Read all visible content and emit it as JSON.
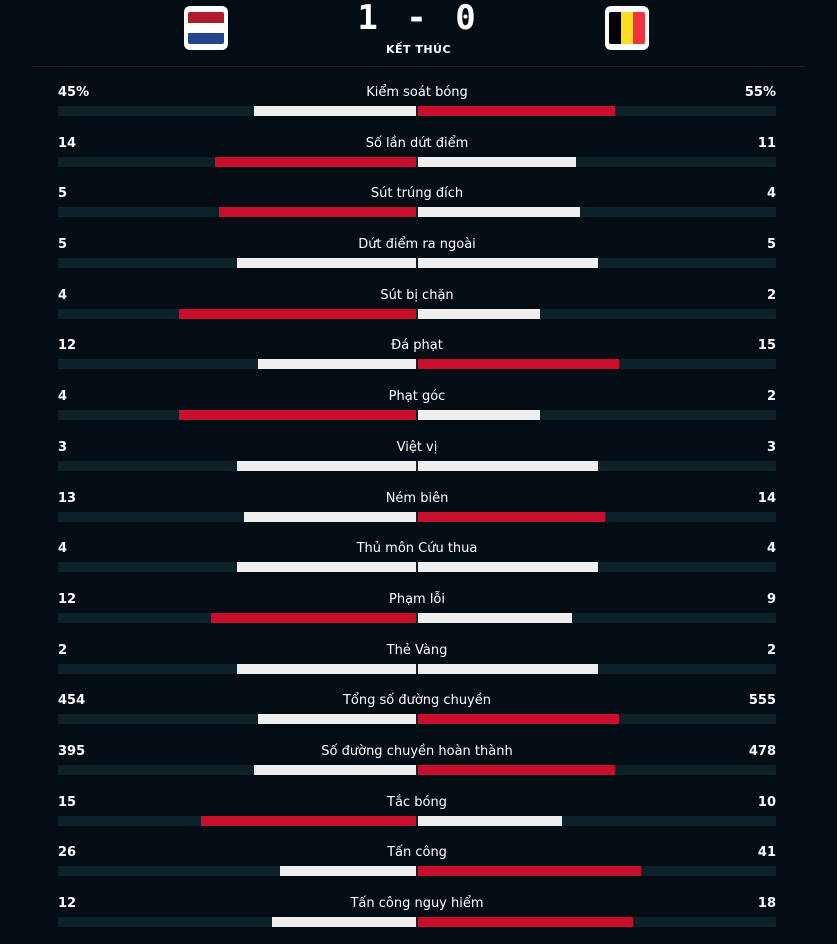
{
  "match": {
    "home_flag_icon": "netherlands-flag-icon",
    "away_flag_icon": "belgium-flag-icon",
    "score": "1 - 0",
    "status": "KẾT THÚC"
  },
  "colors": {
    "winner": "#c8102e",
    "loser": "#eeeeee",
    "track": "#0d2129",
    "background": "#050d14"
  },
  "stats": [
    {
      "label": "Kiểm soát bóng",
      "home": "45%",
      "away": "55%",
      "home_share": 0.45,
      "away_share": 0.55
    },
    {
      "label": "Số lần dứt điểm",
      "home": "14",
      "away": "11",
      "home_share": 0.56,
      "away_share": 0.44
    },
    {
      "label": "Sút trúng đích",
      "home": "5",
      "away": "4",
      "home_share": 0.55,
      "away_share": 0.45
    },
    {
      "label": "Dứt điểm ra ngoài",
      "home": "5",
      "away": "5",
      "home_share": 0.5,
      "away_share": 0.5
    },
    {
      "label": "Sút bị chặn",
      "home": "4",
      "away": "2",
      "home_share": 0.66,
      "away_share": 0.34
    },
    {
      "label": "Đá phạt",
      "home": "12",
      "away": "15",
      "home_share": 0.44,
      "away_share": 0.56
    },
    {
      "label": "Phạt góc",
      "home": "4",
      "away": "2",
      "home_share": 0.66,
      "away_share": 0.34
    },
    {
      "label": "Việt vị",
      "home": "3",
      "away": "3",
      "home_share": 0.5,
      "away_share": 0.5
    },
    {
      "label": "Ném biên",
      "home": "13",
      "away": "14",
      "home_share": 0.48,
      "away_share": 0.52
    },
    {
      "label": "Thủ môn Cứu thua",
      "home": "4",
      "away": "4",
      "home_share": 0.5,
      "away_share": 0.5
    },
    {
      "label": "Phạm lỗi",
      "home": "12",
      "away": "9",
      "home_share": 0.57,
      "away_share": 0.43
    },
    {
      "label": "Thẻ Vàng",
      "home": "2",
      "away": "2",
      "home_share": 0.5,
      "away_share": 0.5
    },
    {
      "label": "Tổng số đường chuyền",
      "home": "454",
      "away": "555",
      "home_share": 0.44,
      "away_share": 0.56
    },
    {
      "label": "Số đường chuyền hoàn thành",
      "home": "395",
      "away": "478",
      "home_share": 0.45,
      "away_share": 0.55
    },
    {
      "label": "Tắc bóng",
      "home": "15",
      "away": "10",
      "home_share": 0.6,
      "away_share": 0.4
    },
    {
      "label": "Tấn công",
      "home": "26",
      "away": "41",
      "home_share": 0.38,
      "away_share": 0.62
    },
    {
      "label": "Tấn công nguy hiểm",
      "home": "12",
      "away": "18",
      "home_share": 0.4,
      "away_share": 0.6
    }
  ]
}
